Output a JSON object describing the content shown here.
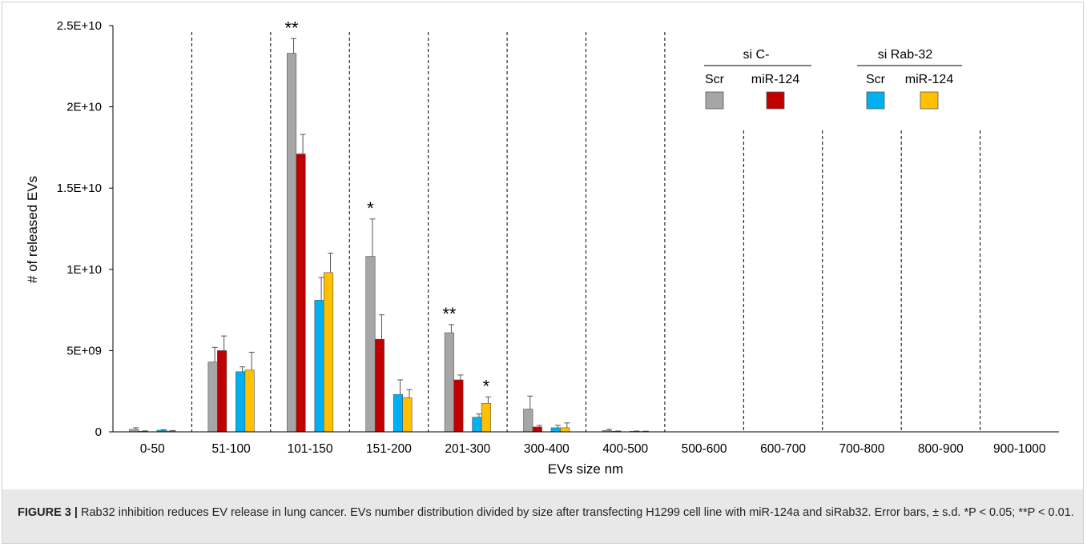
{
  "chart_data": {
    "type": "bar",
    "xlabel": "EVs size nm",
    "ylabel": "# of released EVs",
    "ylim": [
      0,
      25000000000
    ],
    "yticks": [
      {
        "value": 0,
        "label": "0"
      },
      {
        "value": 5000000000,
        "label": "5E+09"
      },
      {
        "value": 10000000000,
        "label": "1E+10"
      },
      {
        "value": 15000000000,
        "label": "1.5E+10"
      },
      {
        "value": 20000000000,
        "label": "2E+10"
      },
      {
        "value": 25000000000,
        "label": "2.5E+10"
      }
    ],
    "categories": [
      "0-50",
      "51-100",
      "101-150",
      "151-200",
      "201-300",
      "300-400",
      "400-500",
      "500-600",
      "600-700",
      "700-800",
      "800-900",
      "900-1000"
    ],
    "series": [
      {
        "name": "Scr",
        "group": "si C-",
        "color": "#a6a6a6",
        "values": [
          150000000,
          4300000000,
          23300000000,
          10800000000,
          6100000000,
          1400000000,
          80000000,
          0,
          0,
          0,
          0,
          0
        ],
        "errors": [
          100000000,
          900000000,
          900000000,
          2300000000,
          500000000,
          800000000,
          80000000,
          0,
          0,
          0,
          0,
          0
        ]
      },
      {
        "name": "miR-124",
        "group": "si C-",
        "color": "#c00000",
        "values": [
          30000000,
          5000000000,
          17100000000,
          5700000000,
          3200000000,
          300000000,
          30000000,
          0,
          0,
          0,
          0,
          0
        ],
        "errors": [
          30000000,
          900000000,
          1200000000,
          1500000000,
          300000000,
          100000000,
          20000000,
          0,
          0,
          0,
          0,
          0
        ]
      },
      {
        "name": "Scr",
        "group": "si Rab-32",
        "color": "#00b0f0",
        "values": [
          100000000,
          3700000000,
          8100000000,
          2300000000,
          900000000,
          250000000,
          30000000,
          0,
          0,
          0,
          0,
          0
        ],
        "errors": [
          30000000,
          300000000,
          1400000000,
          900000000,
          200000000,
          150000000,
          20000000,
          0,
          0,
          0,
          0,
          0
        ]
      },
      {
        "name": "miR-124",
        "group": "si Rab-32",
        "color": "#ffc000",
        "values": [
          50000000,
          3800000000,
          9800000000,
          2100000000,
          1750000000,
          250000000,
          20000000,
          0,
          0,
          0,
          0,
          0
        ],
        "errors": [
          30000000,
          1100000000,
          1200000000,
          500000000,
          400000000,
          300000000,
          20000000,
          0,
          0,
          0,
          0,
          0
        ]
      }
    ],
    "annotations": [
      {
        "category": "101-150",
        "series": 0,
        "text": "**"
      },
      {
        "category": "151-200",
        "series": 0,
        "text": "*"
      },
      {
        "category": "201-300",
        "series": 0,
        "text": "**"
      },
      {
        "category": "201-300",
        "series": 3,
        "text": "*"
      }
    ],
    "legend": {
      "placement": "top-right",
      "groups": [
        {
          "label": "si C-",
          "items": [
            {
              "label": "Scr",
              "color": "#a6a6a6"
            },
            {
              "label": "miR-124",
              "color": "#c00000"
            }
          ]
        },
        {
          "label": "si Rab-32",
          "items": [
            {
              "label": "Scr",
              "color": "#00b0f0"
            },
            {
              "label": "miR-124",
              "color": "#ffc000"
            }
          ]
        }
      ]
    },
    "category_separators": "dashed",
    "grid": false
  },
  "caption": {
    "label": "FIGURE 3 |",
    "text": " Rab32 inhibition reduces EV release in lung cancer. EVs number distribution divided by size after transfecting H1299 cell line with miR-124a and siRab32. Error bars, ± s.d. *P < 0.05; **P < 0.01."
  }
}
